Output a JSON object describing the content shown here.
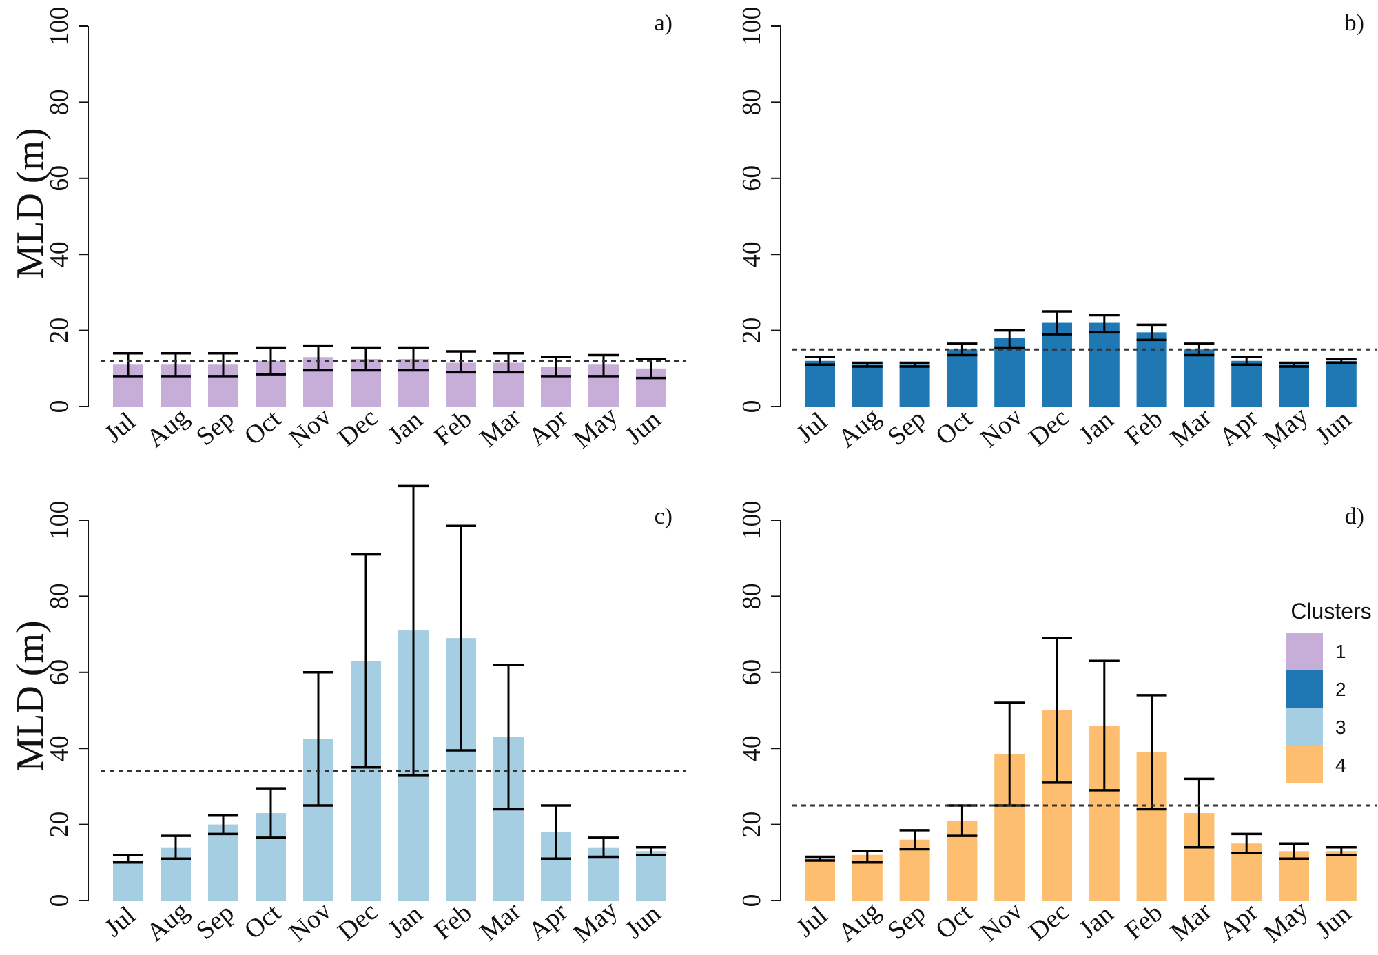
{
  "colors": {
    "cluster1": "#c7aed9",
    "cluster2": "#1f78b4",
    "cluster3": "#a6cee3",
    "cluster4": "#fdbf6f",
    "axis": "#111111",
    "errorbar": "#000000",
    "refline": "#333333"
  },
  "chart_data": [
    {
      "type": "bar",
      "panel": "a)",
      "ylabel": "MLD (m)",
      "ylim": [
        0,
        100
      ],
      "yticks": [
        "0",
        "20",
        "40",
        "60",
        "80",
        "100"
      ],
      "categories": [
        "Jul",
        "Aug",
        "Sep",
        "Oct",
        "Nov",
        "Dec",
        "Jan",
        "Feb",
        "Mar",
        "Apr",
        "May",
        "Jun"
      ],
      "values": [
        11,
        11,
        11,
        12,
        13,
        12.5,
        12.5,
        11.5,
        11.5,
        10.5,
        11,
        10
      ],
      "err_low": [
        8,
        8,
        8,
        8.5,
        9.5,
        9.5,
        9.5,
        9,
        9,
        8,
        8,
        7.5
      ],
      "err_high": [
        14,
        14,
        14,
        15.5,
        16,
        15.5,
        15.5,
        14.5,
        14,
        13,
        13.5,
        12.5
      ],
      "reference_line": 12,
      "color": "#c7aed9"
    },
    {
      "type": "bar",
      "panel": "b)",
      "ylabel": "",
      "ylim": [
        0,
        100
      ],
      "yticks": [
        "0",
        "20",
        "40",
        "60",
        "80",
        "100"
      ],
      "categories": [
        "Jul",
        "Aug",
        "Sep",
        "Oct",
        "Nov",
        "Dec",
        "Jan",
        "Feb",
        "Mar",
        "Apr",
        "May",
        "Jun"
      ],
      "values": [
        12,
        11,
        11,
        15,
        18,
        22,
        22,
        19.5,
        15,
        12,
        11,
        12
      ],
      "err_low": [
        11,
        10.5,
        10.5,
        13.5,
        15.5,
        19,
        19.5,
        17.5,
        13.5,
        11,
        10.5,
        11.5
      ],
      "err_high": [
        13,
        11.5,
        11.5,
        16.5,
        20,
        25,
        24,
        21.5,
        16.5,
        13,
        11.5,
        12.5
      ],
      "reference_line": 15,
      "color": "#1f78b4"
    },
    {
      "type": "bar",
      "panel": "c)",
      "ylabel": "MLD (m)",
      "ylim": [
        0,
        100
      ],
      "yticks": [
        "0",
        "20",
        "40",
        "60",
        "80",
        "100"
      ],
      "categories": [
        "Jul",
        "Aug",
        "Sep",
        "Oct",
        "Nov",
        "Dec",
        "Jan",
        "Feb",
        "Mar",
        "Apr",
        "May",
        "Jun"
      ],
      "values": [
        10.5,
        14,
        20,
        23,
        42.5,
        63,
        71,
        69,
        43,
        18,
        14,
        13
      ],
      "err_low": [
        10,
        11,
        17.5,
        16.5,
        25,
        35,
        33,
        39.5,
        24,
        11,
        11.5,
        12
      ],
      "err_high": [
        12,
        17,
        22.5,
        29.5,
        60,
        91,
        109,
        98.5,
        62,
        25,
        16.5,
        14
      ],
      "reference_line": 34,
      "color": "#a6cee3"
    },
    {
      "type": "bar",
      "panel": "d)",
      "ylabel": "",
      "ylim": [
        0,
        100
      ],
      "yticks": [
        "0",
        "20",
        "40",
        "60",
        "80",
        "100"
      ],
      "categories": [
        "Jul",
        "Aug",
        "Sep",
        "Oct",
        "Nov",
        "Dec",
        "Jan",
        "Feb",
        "Mar",
        "Apr",
        "May",
        "Jun"
      ],
      "values": [
        11,
        12,
        16,
        21,
        38.5,
        50,
        46,
        39,
        23,
        15,
        13,
        13
      ],
      "err_low": [
        10.5,
        10,
        13.5,
        17,
        25,
        31,
        29,
        24,
        14,
        12.5,
        11,
        12
      ],
      "err_high": [
        11.5,
        13,
        18.5,
        25,
        52,
        69,
        63,
        54,
        32,
        17.5,
        15,
        14
      ],
      "reference_line": 25,
      "color": "#fdbf6f"
    }
  ],
  "legend": {
    "title": "Clusters",
    "items": [
      {
        "label": "1",
        "color": "#c7aed9"
      },
      {
        "label": "2",
        "color": "#1f78b4"
      },
      {
        "label": "3",
        "color": "#a6cee3"
      },
      {
        "label": "4",
        "color": "#fdbf6f"
      }
    ]
  }
}
